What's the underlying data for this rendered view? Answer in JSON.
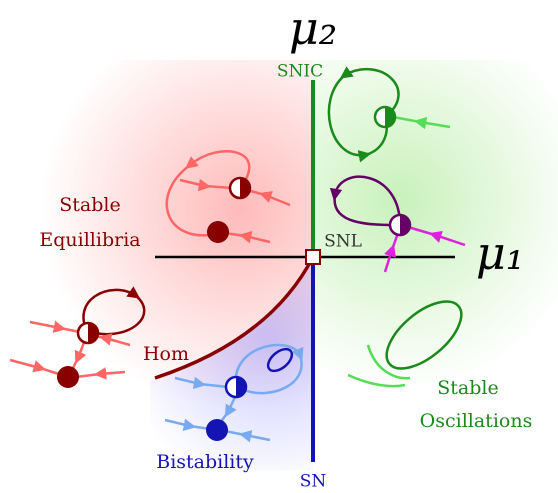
{
  "axes": {
    "mu2": "μ₂",
    "mu1": "μ₁"
  },
  "bifurcations": {
    "snic": "SNIC",
    "snl": "SNL",
    "sn": "SN",
    "hom": "Hom"
  },
  "regions": {
    "stable_equilibria": [
      "Stable",
      "Equillibria"
    ],
    "bistability": "Bistability",
    "stable_oscillations": [
      "Stable",
      "Oscillations"
    ]
  }
}
